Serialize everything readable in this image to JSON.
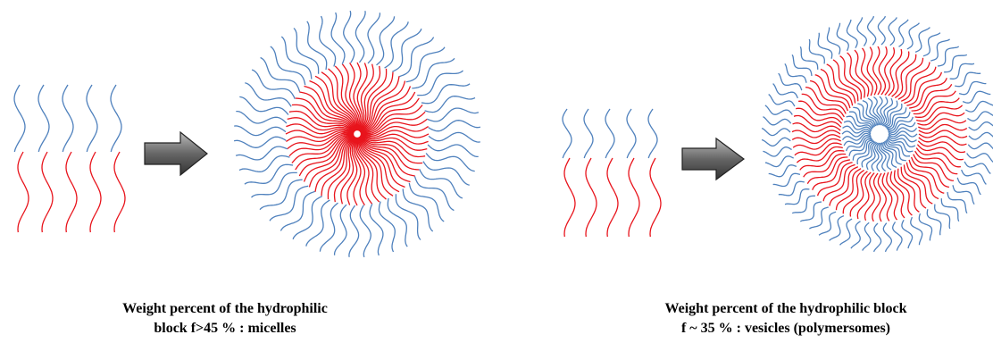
{
  "captions": [
    {
      "lines": [
        "Weight percent of the  hydrophilic",
        "block f>45 % : micelles"
      ]
    },
    {
      "lines": [
        "Weight percent of the  hydrophilic block",
        "f ~ 35 % : vesicles (polymersomes)"
      ]
    }
  ]
}
